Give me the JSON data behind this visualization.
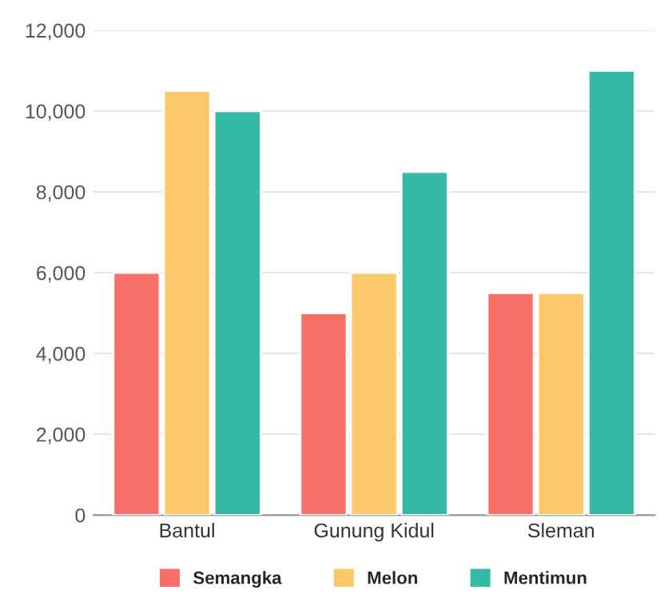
{
  "chart_data": {
    "type": "bar",
    "categories": [
      "Bantul",
      "Gunung Kidul",
      "Sleman"
    ],
    "series": [
      {
        "name": "Semangka",
        "color": "#f86f68",
        "values": [
          6000,
          5000,
          5500
        ]
      },
      {
        "name": "Melon",
        "color": "#fbc86a",
        "values": [
          10500,
          6000,
          5500
        ]
      },
      {
        "name": "Mentimun",
        "color": "#35baa5",
        "values": [
          10000,
          8500,
          11000
        ]
      }
    ],
    "ylim": [
      0,
      12000
    ],
    "yticks": [
      {
        "value": 0,
        "label": "0"
      },
      {
        "value": 2000,
        "label": "2,000"
      },
      {
        "value": 4000,
        "label": "4,000"
      },
      {
        "value": 6000,
        "label": "6,000"
      },
      {
        "value": 8000,
        "label": "8,000"
      },
      {
        "value": 10000,
        "label": "10,000"
      },
      {
        "value": 12000,
        "label": "12,000"
      }
    ],
    "grid": "y",
    "legend": "bottom"
  }
}
